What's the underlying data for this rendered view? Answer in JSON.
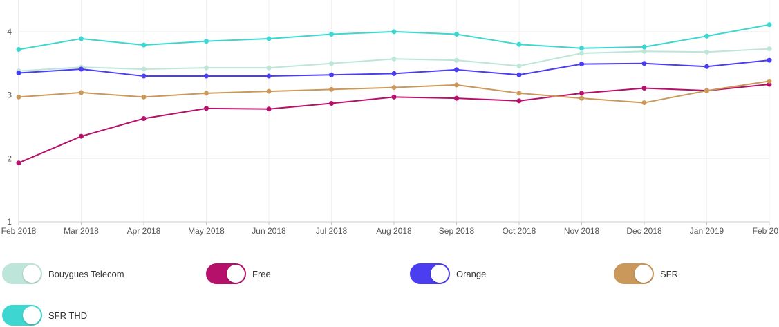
{
  "chart_data": {
    "type": "line",
    "title": "",
    "xlabel": "",
    "ylabel": "",
    "x": [
      "Feb 2018",
      "Mar 2018",
      "Apr 2018",
      "May 2018",
      "Jun 2018",
      "Jul 2018",
      "Aug 2018",
      "Sep 2018",
      "Oct 2018",
      "Nov 2018",
      "Dec 2018",
      "Jan 2019",
      "Feb 20"
    ],
    "ylim": [
      1,
      4.5
    ],
    "yticks": [
      "1",
      "2",
      "3",
      "4"
    ],
    "grid": true,
    "legend_position": "bottom",
    "series": [
      {
        "name": "Bouygues Telecom",
        "color": "#bde5da",
        "values": [
          3.38,
          3.44,
          3.41,
          3.43,
          3.43,
          3.5,
          3.57,
          3.55,
          3.46,
          3.66,
          3.69,
          3.68,
          3.73
        ]
      },
      {
        "name": "Free",
        "color": "#b5106a",
        "values": [
          1.93,
          2.35,
          2.63,
          2.79,
          2.78,
          2.87,
          2.97,
          2.95,
          2.91,
          3.03,
          3.11,
          3.07,
          3.17
        ]
      },
      {
        "name": "Orange",
        "color": "#4b3df0",
        "values": [
          3.35,
          3.41,
          3.3,
          3.3,
          3.3,
          3.32,
          3.34,
          3.4,
          3.32,
          3.49,
          3.5,
          3.45,
          3.55
        ]
      },
      {
        "name": "SFR",
        "color": "#c9985a",
        "values": [
          2.97,
          3.04,
          2.97,
          3.03,
          3.06,
          3.09,
          3.12,
          3.16,
          3.03,
          2.95,
          2.88,
          3.07,
          3.22
        ]
      },
      {
        "name": "SFR THD",
        "color": "#3dd6d0",
        "values": [
          3.72,
          3.89,
          3.79,
          3.85,
          3.89,
          3.96,
          4.0,
          3.96,
          3.8,
          3.74,
          3.76,
          3.93,
          4.11
        ]
      }
    ]
  },
  "legend": [
    {
      "label": "Bouygues Telecom",
      "color": "#bde5da"
    },
    {
      "label": "Free",
      "color": "#b5106a"
    },
    {
      "label": "Orange",
      "color": "#4b3df0"
    },
    {
      "label": "SFR",
      "color": "#c9985a"
    },
    {
      "label": "SFR THD",
      "color": "#3dd6d0"
    }
  ]
}
